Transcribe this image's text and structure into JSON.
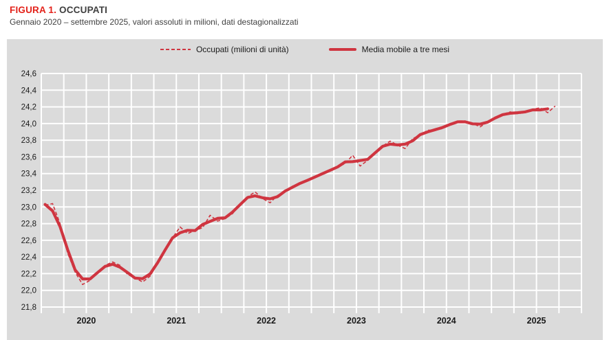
{
  "header": {
    "figure_label": "FIGURA 1.",
    "figure_title": "OCCUPATI",
    "subtitle": "Gennaio 2020 – settembre 2025, valori assoluti in milioni, dati destagionalizzati"
  },
  "legend": {
    "items": [
      {
        "label": "Occupati (milioni di unità)",
        "style": "dashed"
      },
      {
        "label": "Media mobile a tre mesi",
        "style": "solid"
      }
    ]
  },
  "colors": {
    "series_red": "#cf3540",
    "title_red": "#e32119",
    "figure_bg": "#dbdbdb",
    "gridline": "#ffffff",
    "axis_text": "#1a1a1a",
    "subtitle_text": "#404040"
  },
  "chart_data": {
    "type": "line",
    "title": "FIGURA 1. OCCUPATI",
    "subtitle": "Gennaio 2020 – settembre 2025, valori assoluti in milioni, dati destagionalizzati",
    "x_start": "2020-01",
    "x_end": "2025-09",
    "x_frequency": "monthly",
    "x_tick_labels": [
      "2020",
      "2021",
      "2022",
      "2023",
      "2024",
      "2025"
    ],
    "y_tick_labels": [
      "24,6",
      "24,4",
      "24,2",
      "24,0",
      "23,8",
      "23,6",
      "23,4",
      "23,2",
      "23,0",
      "22,8",
      "22,6",
      "22,4",
      "22,2",
      "22,0",
      "21,8"
    ],
    "ylim": [
      21.8,
      24.6
    ],
    "y_step": 0.2,
    "grid": true,
    "gridline_color": "white",
    "plot_background": "light-gray",
    "legend_position": "top-center",
    "minor_x_ticks": "quarterly",
    "series": [
      {
        "name": "Occupati (milioni di unità)",
        "style": "dashed",
        "values": [
          23.02,
          23.04,
          22.8,
          22.45,
          22.22,
          22.07,
          22.12,
          22.22,
          22.3,
          22.34,
          22.3,
          22.19,
          22.15,
          22.1,
          22.17,
          22.32,
          22.5,
          22.63,
          22.76,
          22.68,
          22.72,
          22.75,
          22.9,
          22.83,
          22.86,
          22.92,
          23.04,
          23.12,
          23.18,
          23.1,
          23.05,
          23.14,
          23.18,
          23.25,
          23.28,
          23.32,
          23.36,
          23.4,
          23.44,
          23.48,
          23.52,
          23.62,
          23.49,
          23.56,
          23.66,
          23.73,
          23.79,
          23.74,
          23.7,
          23.82,
          23.86,
          23.92,
          23.92,
          23.94,
          24.0,
          24.03,
          24.03,
          24.0,
          23.96,
          24.02,
          24.07,
          24.11,
          24.14,
          24.12,
          24.13,
          24.17,
          24.19,
          24.13,
          24.21
        ]
      },
      {
        "name": "Media mobile a tre mesi",
        "style": "solid",
        "derived": "3-month centered moving average of series 0; ends one month before the monthly series"
      }
    ]
  }
}
